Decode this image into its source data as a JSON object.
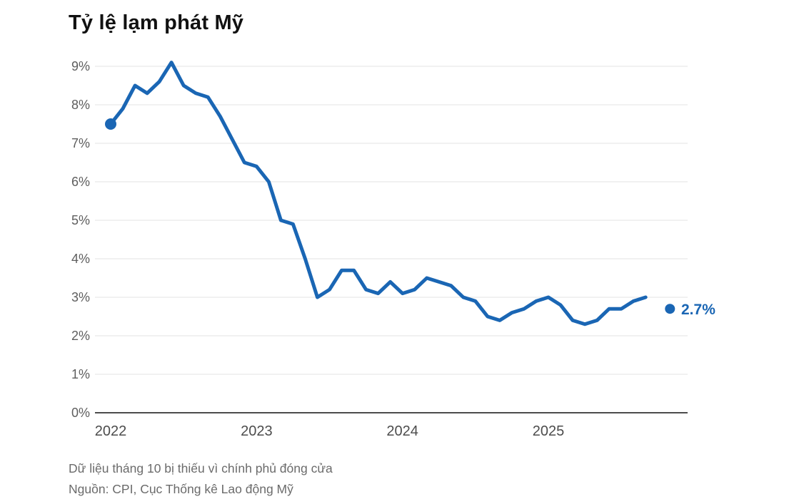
{
  "title": "Tỷ lệ lạm phát Mỹ",
  "footnote": "Dữ liệu tháng 10 bị thiếu vì chính phủ đóng cửa",
  "source": "Nguồn: CPI, Cục Thống kê Lao động Mỹ",
  "chart_data": {
    "type": "line",
    "title": "Tỷ lệ lạm phát Mỹ",
    "xlabel": "",
    "ylabel": "",
    "ylim": [
      0,
      9
    ],
    "grid": true,
    "legend": "none",
    "y_ticks": [
      "0%",
      "1%",
      "2%",
      "3%",
      "4%",
      "5%",
      "6%",
      "7%",
      "8%",
      "9%"
    ],
    "x_ticks": [
      {
        "label": "2022",
        "month_index": 0
      },
      {
        "label": "2023",
        "month_index": 12
      },
      {
        "label": "2024",
        "month_index": 24
      },
      {
        "label": "2025",
        "month_index": 36
      }
    ],
    "series": [
      {
        "name": "CPI",
        "values": [
          7.5,
          7.9,
          8.5,
          8.3,
          8.6,
          9.1,
          8.5,
          8.3,
          8.2,
          7.7,
          7.1,
          6.5,
          6.4,
          6.0,
          5.0,
          4.9,
          4.0,
          3.0,
          3.2,
          3.7,
          3.7,
          3.2,
          3.1,
          3.4,
          3.1,
          3.2,
          3.5,
          3.4,
          3.3,
          3.0,
          2.9,
          2.5,
          2.4,
          2.6,
          2.7,
          2.9,
          3.0,
          2.8,
          2.4,
          2.3,
          2.4,
          2.7,
          2.7,
          2.9,
          3.0
        ]
      }
    ],
    "isolated_point": {
      "month_index": 46,
      "value": 2.7,
      "label": "2.7%"
    },
    "end_label": "2.7%",
    "colors": {
      "line": "#1a66b4",
      "grid": "#e3e3e3",
      "axis": "#4c4c4c",
      "y_tick_text": "#5e5e5e",
      "x_tick_text": "#4c4c4c",
      "end_label": "#1a66b4"
    }
  }
}
